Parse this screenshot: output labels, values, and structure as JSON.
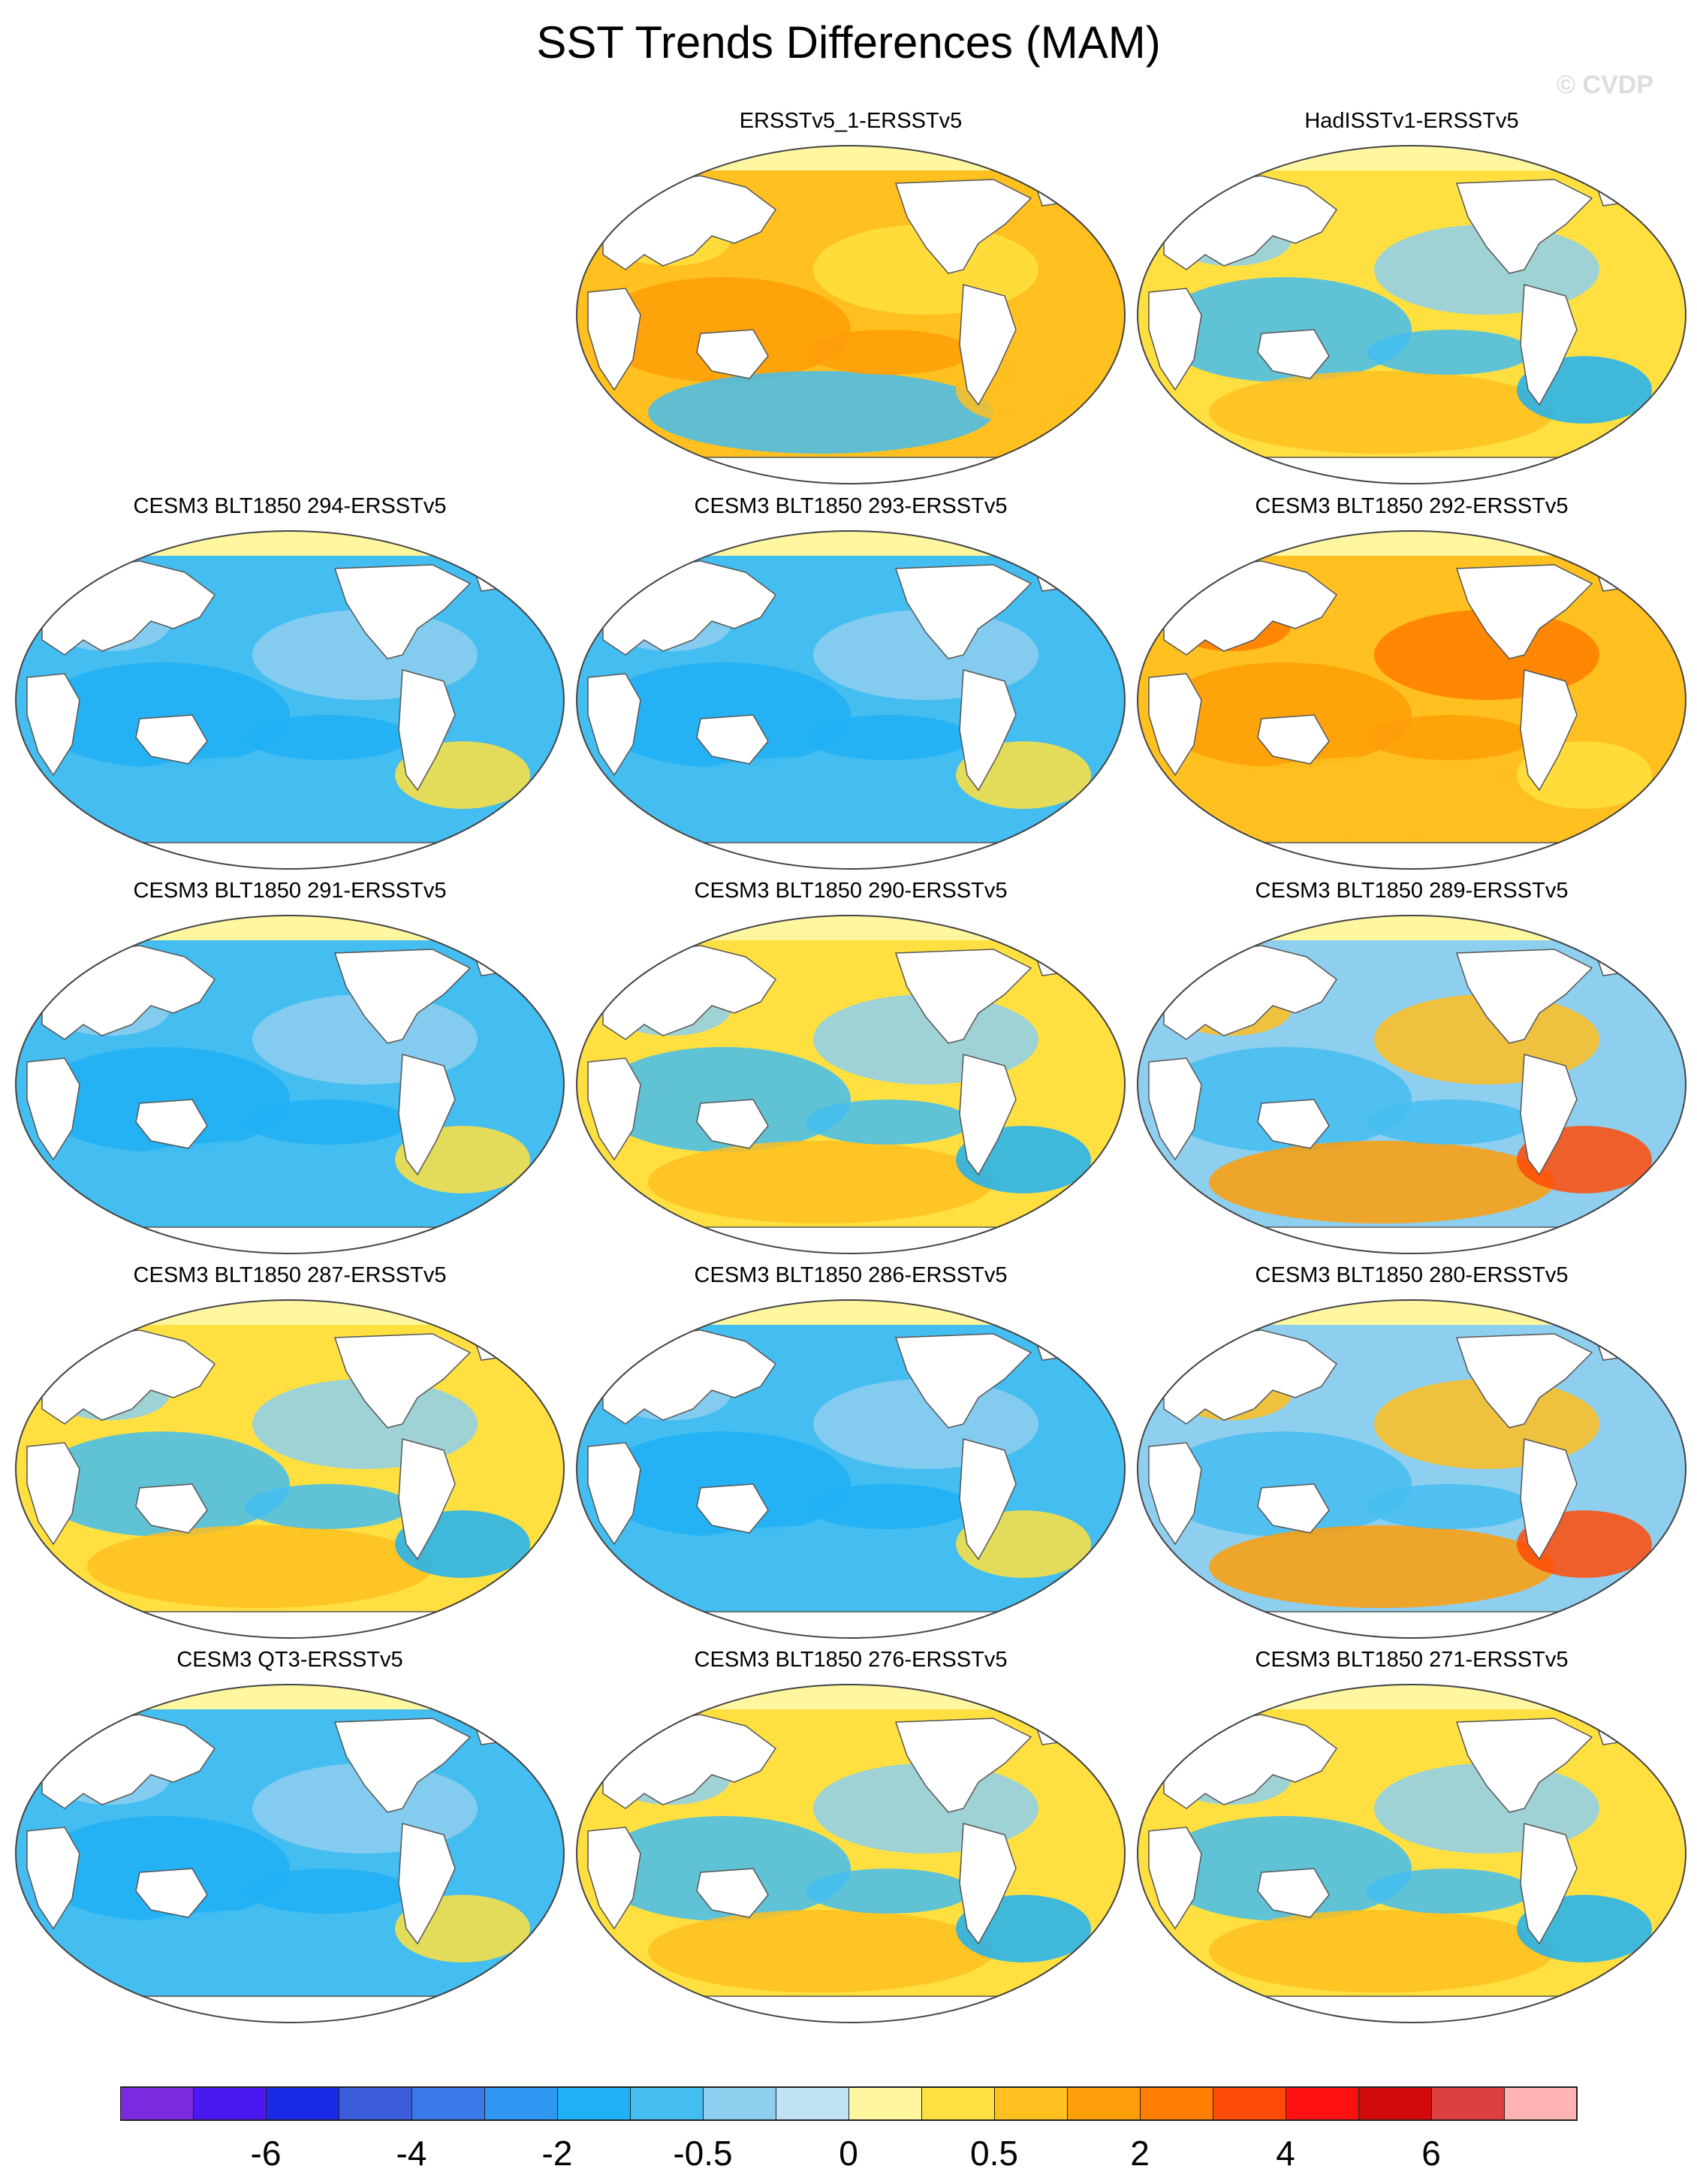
{
  "title": "SST Trends Differences (MAM)",
  "credit": "© CVDP",
  "colorbar": {
    "colors": [
      "#7b2ae0",
      "#4b19f0",
      "#1a2ae8",
      "#3b5cd8",
      "#3a7ae8",
      "#2f96f2",
      "#1fb0f5",
      "#44bdf0",
      "#8ecff0",
      "#bfe3f5",
      "#fff7a0",
      "#ffe040",
      "#ffc020",
      "#ff9e08",
      "#ff7d00",
      "#ff4b08",
      "#ff1010",
      "#d00a0a",
      "#dd4040",
      "#ffb3b3"
    ],
    "labels": [
      {
        "text": "-6",
        "boundary": 2
      },
      {
        "text": "-4",
        "boundary": 4
      },
      {
        "text": "-2",
        "boundary": 6
      },
      {
        "text": "-0.5",
        "boundary": 8
      },
      {
        "text": "0",
        "boundary": 10
      },
      {
        "text": "0.5",
        "boundary": 12
      },
      {
        "text": "2",
        "boundary": 14
      },
      {
        "text": "4",
        "boundary": 16
      },
      {
        "text": "6",
        "boundary": 18
      }
    ]
  },
  "panels": [
    {
      "label": "ERSSTv5_1-ERSSTv5",
      "pattern": "warm"
    },
    {
      "label": "HadISSTv1-ERSSTv5",
      "pattern": "mixed"
    },
    {
      "label": "CESM3 BLT1850 294-ERSSTv5",
      "pattern": "cool"
    },
    {
      "label": "CESM3 BLT1850 293-ERSSTv5",
      "pattern": "cool"
    },
    {
      "label": "CESM3 BLT1850 292-ERSSTv5",
      "pattern": "hot"
    },
    {
      "label": "CESM3 BLT1850 291-ERSSTv5",
      "pattern": "cool"
    },
    {
      "label": "CESM3 BLT1850 290-ERSSTv5",
      "pattern": "mixed"
    },
    {
      "label": "CESM3 BLT1850 289-ERSSTv5",
      "pattern": "warmsouth"
    },
    {
      "label": "CESM3 BLT1850 287-ERSSTv5",
      "pattern": "mixed"
    },
    {
      "label": "CESM3 BLT1850 286-ERSSTv5",
      "pattern": "cool"
    },
    {
      "label": "CESM3 BLT1850 280-ERSSTv5",
      "pattern": "warmsouth"
    },
    {
      "label": "CESM3 QT3-ERSSTv5",
      "pattern": "cool"
    },
    {
      "label": "CESM3 BLT1850 276-ERSSTv5",
      "pattern": "mixed"
    },
    {
      "label": "CESM3 BLT1850 271-ERSSTv5",
      "pattern": "mixed"
    }
  ]
}
